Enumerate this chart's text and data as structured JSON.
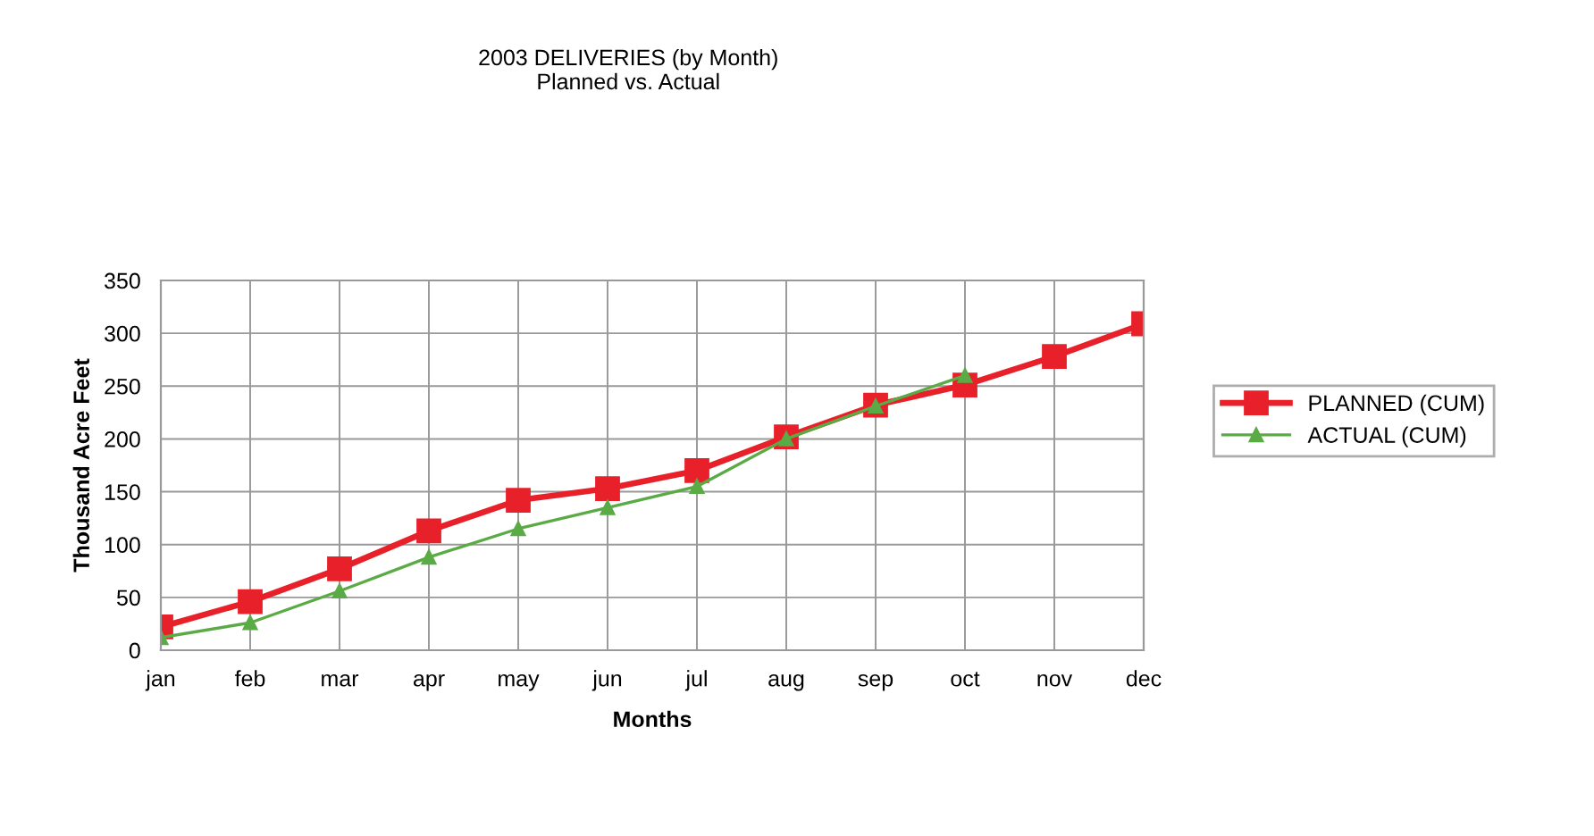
{
  "chart_data": {
    "type": "line",
    "title": "2003 DELIVERIES (by Month)\nPlanned vs. Actual",
    "xlabel": "Months",
    "ylabel": "Thousand Acre Feet",
    "categories": [
      "jan",
      "feb",
      "mar",
      "apr",
      "may",
      "jun",
      "jul",
      "aug",
      "sep",
      "oct",
      "nov",
      "dec"
    ],
    "series": [
      {
        "name": "PLANNED (CUM)",
        "color": "#e8202a",
        "marker": "square",
        "values": [
          22,
          46,
          77,
          113,
          142,
          153,
          170,
          202,
          232,
          251,
          278,
          309
        ]
      },
      {
        "name": "ACTUAL (CUM)",
        "color": "#5aab45",
        "marker": "triangle",
        "values": [
          12,
          26,
          56,
          88,
          115,
          135,
          155,
          200,
          231,
          260,
          null,
          null
        ]
      }
    ],
    "ylim": [
      0,
      350
    ],
    "yticks": [
      0,
      50,
      100,
      150,
      200,
      250,
      300,
      350
    ],
    "grid": true,
    "legend": "right",
    "line_style": "solid"
  }
}
